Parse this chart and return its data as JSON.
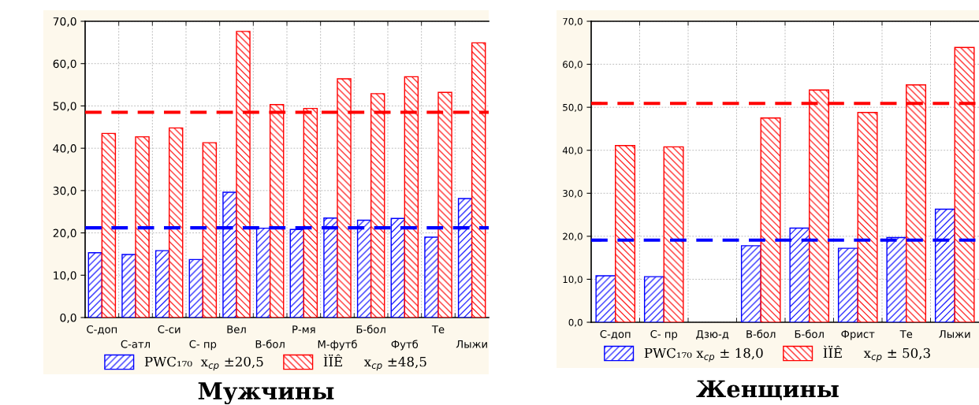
{
  "chart_data": [
    {
      "type": "bar",
      "title": "Мужчины",
      "categories": [
        "С-доп",
        "С-атл",
        "С-си",
        "С- пр",
        "Вел",
        "В-бол",
        "Р-мя",
        "М-футб",
        "Б-бол",
        "Футб",
        "Те",
        "Лыжи"
      ],
      "series": [
        {
          "name": "PWC₁₇₀  x$_{ср}$ ±20,5",
          "color": "#0000ff",
          "values": [
            15.3,
            14.9,
            15.8,
            13.7,
            29.6,
            21.1,
            20.8,
            23.5,
            23.0,
            23.4,
            19.0,
            28.1
          ]
        },
        {
          "name": "ÌÏÊ     x$_{ср}$ ±48,5",
          "color": "#ff0000",
          "values": [
            43.5,
            42.7,
            44.8,
            41.3,
            67.6,
            50.3,
            49.4,
            56.4,
            52.9,
            56.9,
            53.2,
            64.9
          ]
        }
      ],
      "ylim": [
        0,
        70
      ],
      "yticks": [
        {
          "value": 0,
          "label": "0,0"
        },
        {
          "value": 10,
          "label": "10,0"
        },
        {
          "value": 20,
          "label": "20,0"
        },
        {
          "value": 30,
          "label": "30,0"
        },
        {
          "value": 40,
          "label": "40,0"
        },
        {
          "value": 50,
          "label": "50,0"
        },
        {
          "value": 60,
          "label": "60,0"
        },
        {
          "value": 70,
          "label": "70,0"
        }
      ],
      "ref_lines": [
        {
          "axis": "y",
          "value": 48.5,
          "color": "#ff0000",
          "line_style": "dashed"
        },
        {
          "axis": "y",
          "value": 21.2,
          "color": "#0000ff",
          "line_style": "dashed"
        }
      ],
      "grid": true,
      "legend": "bottom"
    },
    {
      "type": "bar",
      "title": "Женщины",
      "categories": [
        "С-доп",
        "С- пр",
        "Дзю-д",
        "В-бол",
        "Б-бол",
        "Фрист",
        "Те",
        "Лыжи"
      ],
      "series": [
        {
          "name": "PWC₁₇₀ x$_{ср}$ ± 18,0",
          "color": "#0000ff",
          "values": [
            10.8,
            10.6,
            null,
            17.8,
            21.9,
            17.2,
            19.7,
            26.3
          ]
        },
        {
          "name": "ÌÏÊ     x$_{ср}$ ± 50,3",
          "color": "#ff0000",
          "values": [
            41.1,
            40.8,
            null,
            47.5,
            54.0,
            48.8,
            55.2,
            63.9
          ]
        }
      ],
      "ylim": [
        0,
        70
      ],
      "yticks": [
        {
          "value": 0,
          "label": "0,0"
        },
        {
          "value": 10,
          "label": "10,0"
        },
        {
          "value": 20,
          "label": "20,0"
        },
        {
          "value": 30,
          "label": "30,0"
        },
        {
          "value": 40,
          "label": "40,0"
        },
        {
          "value": 50,
          "label": "50,0"
        },
        {
          "value": 60,
          "label": "60,0"
        },
        {
          "value": 70,
          "label": "70,0"
        }
      ],
      "ref_lines": [
        {
          "axis": "y",
          "value": 50.9,
          "color": "#ff0000",
          "line_style": "dashed"
        },
        {
          "axis": "y",
          "value": 19.1,
          "color": "#0000ff",
          "line_style": "dashed"
        }
      ],
      "grid": true,
      "legend": "bottom"
    }
  ]
}
